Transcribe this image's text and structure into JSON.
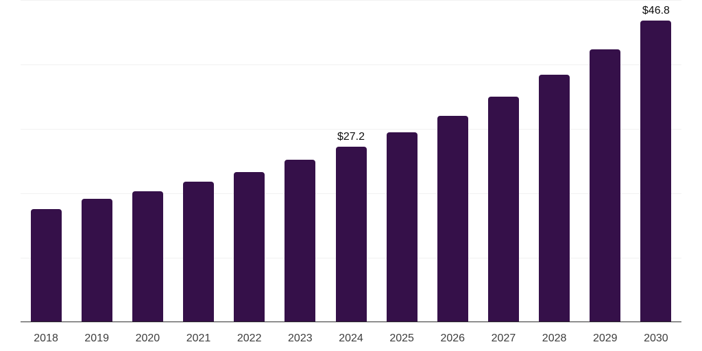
{
  "chart_data": {
    "type": "bar",
    "title": "",
    "xlabel": "",
    "ylabel": "",
    "categories": [
      "2018",
      "2019",
      "2020",
      "2021",
      "2022",
      "2023",
      "2024",
      "2025",
      "2026",
      "2027",
      "2028",
      "2029",
      "2030"
    ],
    "values": [
      17.6,
      19.1,
      20.3,
      21.8,
      23.3,
      25.2,
      27.2,
      29.5,
      32.0,
      35.0,
      38.4,
      42.3,
      46.8
    ],
    "data_labels": [
      "",
      "",
      "",
      "",
      "",
      "",
      "$27.2",
      "",
      "",
      "",
      "",
      "",
      "$46.8"
    ],
    "ylim": [
      0,
      50
    ],
    "gridline_step": 10,
    "grid": "on",
    "legend": "none",
    "colors": {
      "bar": "#351049",
      "gridline": "#f1f1f1",
      "axis_line": "#2e2e2e",
      "tick_label": "#3d3d3d",
      "data_label": "#0d0d0d",
      "background": "#ffffff"
    }
  }
}
